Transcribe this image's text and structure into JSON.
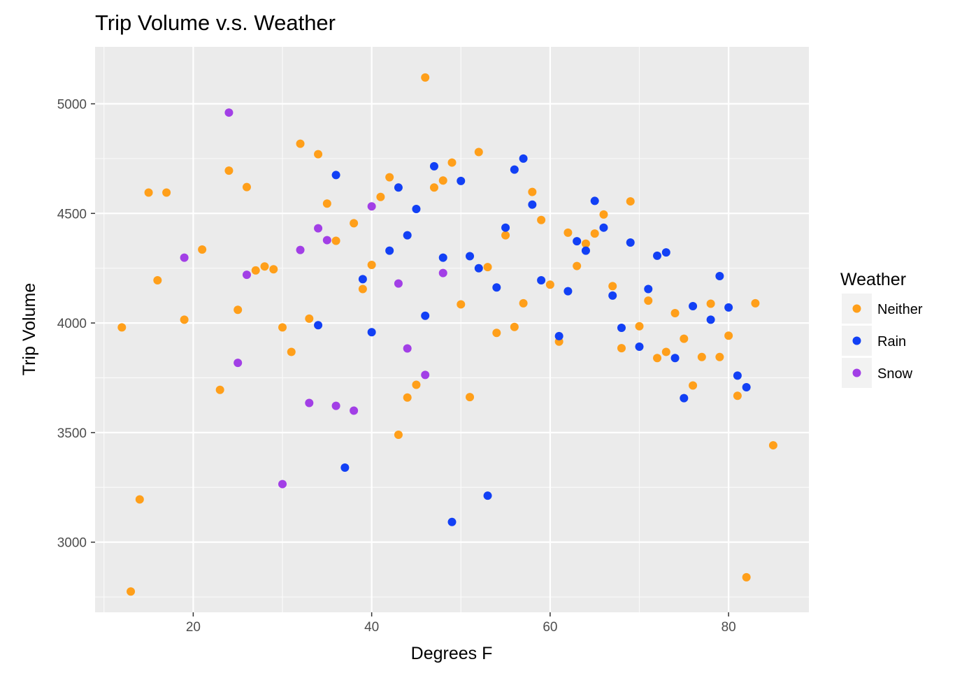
{
  "chart_data": {
    "type": "scatter",
    "title": "Trip Volume v.s. Weather",
    "xlabel": "Degrees F",
    "ylabel": "Trip Volume",
    "xlim": [
      9,
      89
    ],
    "ylim": [
      2680,
      5260
    ],
    "x_ticks": [
      20,
      40,
      60,
      80
    ],
    "x_tick_labels": [
      "20",
      "40",
      "60",
      "80"
    ],
    "y_ticks": [
      3000,
      3500,
      4000,
      4500,
      5000
    ],
    "y_tick_labels": [
      "3000",
      "3500",
      "4000",
      "4500",
      "5000"
    ],
    "x_minor_ticks": [
      10,
      30,
      50,
      70
    ],
    "y_minor_ticks": [
      2750,
      3250,
      3750,
      4250,
      4750
    ],
    "grid": true,
    "panel_background": "#ebebeb",
    "legend_title": "Weather",
    "legend_position": "right",
    "series": [
      {
        "name": "Neither",
        "color": "#ff9f1a",
        "x": [
          12,
          13,
          14,
          15,
          16,
          17,
          19,
          21,
          23,
          24,
          25,
          26,
          27,
          28,
          29,
          30,
          31,
          32,
          33,
          34,
          35,
          36,
          38,
          39,
          40,
          41,
          42,
          43,
          44,
          45,
          46,
          47,
          48,
          49,
          50,
          51,
          52,
          53,
          54,
          55,
          56,
          57,
          58,
          59,
          60,
          61,
          62,
          63,
          64,
          65,
          66,
          67,
          68,
          69,
          70,
          71,
          72,
          73,
          74,
          75,
          76,
          77,
          78,
          79,
          80,
          81,
          82,
          83,
          85
        ],
        "y": [
          3980,
          2775,
          3195,
          4595,
          4195,
          4595,
          4015,
          4335,
          3695,
          4695,
          4060,
          4620,
          4240,
          4258,
          4245,
          3980,
          3868,
          4818,
          4020,
          4770,
          4545,
          4375,
          4455,
          4155,
          4265,
          4575,
          4665,
          3490,
          3660,
          3718,
          5120,
          4618,
          4650,
          4732,
          4085,
          3662,
          4780,
          4255,
          3955,
          4400,
          3982,
          4090,
          4598,
          4470,
          4175,
          3915,
          4412,
          4260,
          4362,
          4408,
          4495,
          4168,
          3885,
          4555,
          3985,
          4102,
          3840,
          3868,
          4045,
          3928,
          3715,
          3845,
          4088,
          3845,
          3942,
          3668,
          2840,
          4090,
          3442
        ]
      },
      {
        "name": "Rain",
        "color": "#1240f5",
        "x": [
          34,
          36,
          37,
          39,
          40,
          42,
          43,
          44,
          45,
          46,
          47,
          48,
          49,
          50,
          51,
          52,
          53,
          54,
          55,
          56,
          57,
          58,
          59,
          61,
          62,
          63,
          64,
          65,
          66,
          67,
          68,
          69,
          70,
          71,
          72,
          73,
          74,
          75,
          76,
          78,
          79,
          80,
          81,
          82
        ],
        "y": [
          3990,
          4675,
          3340,
          4200,
          3958,
          4330,
          4618,
          4400,
          4520,
          4033,
          4715,
          4298,
          3092,
          4648,
          4305,
          4250,
          3212,
          4162,
          4435,
          4700,
          4750,
          4540,
          4195,
          3940,
          4145,
          4373,
          4330,
          4557,
          4435,
          4125,
          3978,
          4367,
          3892,
          4155,
          4307,
          4322,
          3840,
          3657,
          4077,
          4015,
          4214,
          4071,
          3760,
          3707
        ]
      },
      {
        "name": "Snow",
        "color": "#a23fe6",
        "x": [
          19,
          24,
          25,
          26,
          30,
          32,
          33,
          34,
          35,
          36,
          38,
          40,
          43,
          44,
          46,
          48
        ],
        "y": [
          4298,
          4960,
          3818,
          4220,
          3265,
          4333,
          3635,
          4432,
          4378,
          3622,
          3600,
          4532,
          4180,
          3884,
          3763,
          4228
        ]
      }
    ]
  }
}
